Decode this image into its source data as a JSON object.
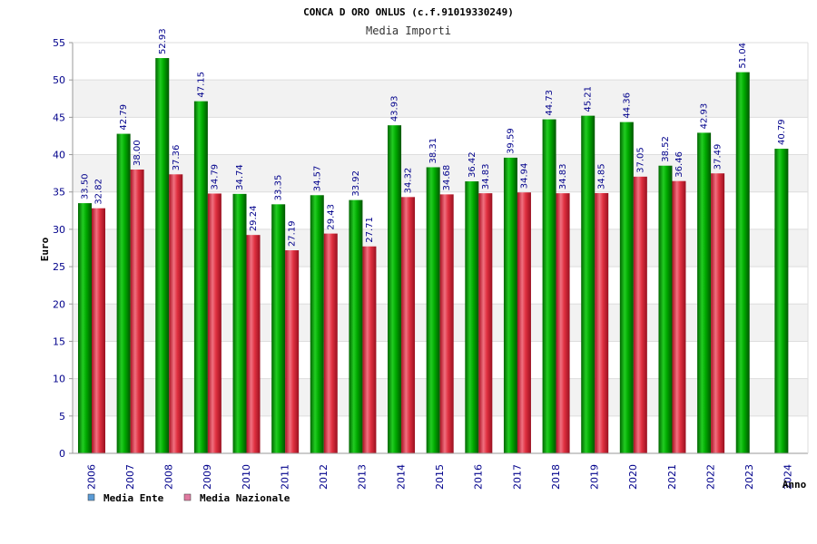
{
  "chart_data": {
    "type": "bar",
    "title": "CONCA D ORO ONLUS (c.f.91019330249)",
    "subtitle": "Media Importi",
    "ylabel": "Euro",
    "xlabel": "Anno",
    "ylim": [
      0,
      55
    ],
    "yticks": [
      0,
      5,
      10,
      15,
      20,
      25,
      30,
      35,
      40,
      45,
      50,
      55
    ],
    "grid": true,
    "legend_position": "bottom-left",
    "categories": [
      "2006",
      "2007",
      "2008",
      "2009",
      "2010",
      "2011",
      "2012",
      "2013",
      "2014",
      "2015",
      "2016",
      "2017",
      "2018",
      "2019",
      "2020",
      "2021",
      "2022",
      "2023",
      "2024"
    ],
    "series": [
      {
        "name": "Media Ente",
        "legend_color": "#5b9bd5",
        "bar_color": "#00aa00",
        "values": [
          33.5,
          42.79,
          52.93,
          47.15,
          34.74,
          33.35,
          34.57,
          33.92,
          43.93,
          38.31,
          36.42,
          39.59,
          44.73,
          45.21,
          44.36,
          38.52,
          42.93,
          51.04,
          40.79
        ],
        "labels": [
          "33.50",
          "42.79",
          "52.93",
          "47.15",
          "34.74",
          "33.35",
          "34.57",
          "33.92",
          "43.93",
          "38.31",
          "36.42",
          "39.59",
          "44.73",
          "45.21",
          "44.36",
          "38.52",
          "42.93",
          "51.04",
          "40.79"
        ]
      },
      {
        "name": "Media Nazionale",
        "legend_color": "#e07aa0",
        "bar_color": "#e0303a",
        "values": [
          32.82,
          38.0,
          37.36,
          34.79,
          29.24,
          27.19,
          29.43,
          27.71,
          34.32,
          34.68,
          34.83,
          34.94,
          34.83,
          34.85,
          37.05,
          36.46,
          37.49,
          null,
          null
        ],
        "labels": [
          "32.82",
          "38.00",
          "37.36",
          "34.79",
          "29.24",
          "27.19",
          "29.43",
          "27.71",
          "34.32",
          "34.68",
          "34.83",
          "34.94",
          "34.83",
          "34.85",
          "37.05",
          "36.46",
          "37.49",
          "",
          ""
        ]
      }
    ]
  }
}
